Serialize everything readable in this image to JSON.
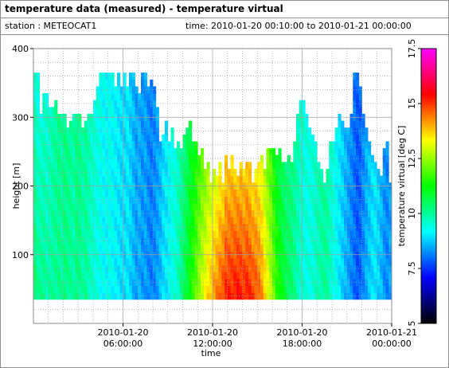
{
  "window": {
    "title": "temperature data (measured) - temperature virtual",
    "station": "station : METEOCAT1",
    "timespan": "time: 2010-01-20 00:10:00 to 2010-01-21 00:00:00"
  },
  "colors": {
    "frame": "#8c8c8c",
    "grid": "#a0a0a0",
    "colormap_stops": [
      "#000000",
      "#0000ff",
      "#00ffff",
      "#00ff00",
      "#ffff00",
      "#ff0000",
      "#ff00ff"
    ]
  },
  "chart_data": {
    "type": "heatmap",
    "xlabel": "time",
    "ylabel": "height [m]",
    "colorbar_label": "temperature virtual [deg C]",
    "x_ticks": [
      {
        "hour": 6,
        "line1": "2010-01-20",
        "line2": "06:00:00"
      },
      {
        "hour": 12,
        "line1": "2010-01-20",
        "line2": "12:00:00"
      },
      {
        "hour": 18,
        "line1": "2010-01-20",
        "line2": "18:00:00"
      },
      {
        "hour": 24,
        "line1": "2010-01-21",
        "line2": "00:00:00"
      }
    ],
    "xlim_hours": [
      0,
      24
    ],
    "ylim": [
      0,
      400
    ],
    "y_ticks": [
      "100",
      "200",
      "300",
      "400"
    ],
    "y_tick_values": [
      100,
      200,
      300,
      400
    ],
    "colorbar_range": [
      5,
      17.5
    ],
    "colorbar_ticks": [
      "5",
      "7.5",
      "10",
      "12.5",
      "15",
      "17.5"
    ],
    "colorbar_tick_values": [
      5,
      7.5,
      10,
      12.5,
      15,
      17.5
    ],
    "bottom_height": 35,
    "bin_height": 10,
    "column_width_hours": 0.2,
    "columns": [
      {
        "h": 0.0,
        "top": 365,
        "t": 9.8
      },
      {
        "h": 0.2,
        "top": 365,
        "t": 9.5
      },
      {
        "h": 0.4,
        "top": 305,
        "t": 9.6
      },
      {
        "h": 0.6,
        "top": 335,
        "t": 9.7
      },
      {
        "h": 0.8,
        "top": 335,
        "t": 9.6
      },
      {
        "h": 1.0,
        "top": 315,
        "t": 9.7
      },
      {
        "h": 1.2,
        "top": 315,
        "t": 9.9
      },
      {
        "h": 1.4,
        "top": 325,
        "t": 10.0
      },
      {
        "h": 1.6,
        "top": 305,
        "t": 10.1
      },
      {
        "h": 1.8,
        "top": 305,
        "t": 10.0
      },
      {
        "h": 2.0,
        "top": 305,
        "t": 10.2
      },
      {
        "h": 2.2,
        "top": 285,
        "t": 10.1
      },
      {
        "h": 2.4,
        "top": 295,
        "t": 10.0
      },
      {
        "h": 2.6,
        "top": 305,
        "t": 9.9
      },
      {
        "h": 2.8,
        "top": 305,
        "t": 10.2
      },
      {
        "h": 3.0,
        "top": 305,
        "t": 10.1
      },
      {
        "h": 3.2,
        "top": 285,
        "t": 9.9
      },
      {
        "h": 3.4,
        "top": 295,
        "t": 10.0
      },
      {
        "h": 3.6,
        "top": 305,
        "t": 9.8
      },
      {
        "h": 3.8,
        "top": 305,
        "t": 9.6
      },
      {
        "h": 4.0,
        "top": 325,
        "t": 9.5
      },
      {
        "h": 4.2,
        "top": 345,
        "t": 9.4
      },
      {
        "h": 4.4,
        "top": 365,
        "t": 9.3
      },
      {
        "h": 4.6,
        "top": 365,
        "t": 9.2
      },
      {
        "h": 4.8,
        "top": 365,
        "t": 9.2
      },
      {
        "h": 5.0,
        "top": 365,
        "t": 9.3
      },
      {
        "h": 5.2,
        "top": 365,
        "t": 9.2
      },
      {
        "h": 5.4,
        "top": 345,
        "t": 9.1
      },
      {
        "h": 5.6,
        "top": 365,
        "t": 9.0
      },
      {
        "h": 5.8,
        "top": 345,
        "t": 8.9
      },
      {
        "h": 6.0,
        "top": 365,
        "t": 8.9
      },
      {
        "h": 6.2,
        "top": 345,
        "t": 9.0
      },
      {
        "h": 6.4,
        "top": 365,
        "t": 8.8
      },
      {
        "h": 6.6,
        "top": 365,
        "t": 8.6
      },
      {
        "h": 6.8,
        "top": 345,
        "t": 8.4
      },
      {
        "h": 7.0,
        "top": 335,
        "t": 8.5
      },
      {
        "h": 7.2,
        "top": 365,
        "t": 8.3
      },
      {
        "h": 7.4,
        "top": 365,
        "t": 8.4
      },
      {
        "h": 7.6,
        "top": 345,
        "t": 8.2
      },
      {
        "h": 7.8,
        "top": 355,
        "t": 8.1
      },
      {
        "h": 8.0,
        "top": 345,
        "t": 8.2
      },
      {
        "h": 8.2,
        "top": 315,
        "t": 8.4
      },
      {
        "h": 8.4,
        "top": 265,
        "t": 8.6
      },
      {
        "h": 8.6,
        "top": 275,
        "t": 8.9
      },
      {
        "h": 8.8,
        "top": 295,
        "t": 9.0
      },
      {
        "h": 9.0,
        "top": 265,
        "t": 9.2
      },
      {
        "h": 9.2,
        "top": 285,
        "t": 9.4
      },
      {
        "h": 9.4,
        "top": 255,
        "t": 9.5
      },
      {
        "h": 9.6,
        "top": 265,
        "t": 9.7
      },
      {
        "h": 9.8,
        "top": 255,
        "t": 10.0
      },
      {
        "h": 10.0,
        "top": 275,
        "t": 10.3
      },
      {
        "h": 10.2,
        "top": 285,
        "t": 10.6
      },
      {
        "h": 10.4,
        "top": 295,
        "t": 10.9
      },
      {
        "h": 10.6,
        "top": 265,
        "t": 11.2
      },
      {
        "h": 10.8,
        "top": 265,
        "t": 11.5
      },
      {
        "h": 11.0,
        "top": 245,
        "t": 11.9
      },
      {
        "h": 11.2,
        "top": 255,
        "t": 12.2
      },
      {
        "h": 11.4,
        "top": 225,
        "t": 12.5
      },
      {
        "h": 11.6,
        "top": 235,
        "t": 12.8
      },
      {
        "h": 11.8,
        "top": 205,
        "t": 13.0
      },
      {
        "h": 12.0,
        "top": 225,
        "t": 13.2
      },
      {
        "h": 12.2,
        "top": 215,
        "t": 13.4
      },
      {
        "h": 12.4,
        "top": 235,
        "t": 13.6
      },
      {
        "h": 12.6,
        "top": 205,
        "t": 13.8
      },
      {
        "h": 12.8,
        "top": 245,
        "t": 14.0
      },
      {
        "h": 13.0,
        "top": 225,
        "t": 14.1
      },
      {
        "h": 13.2,
        "top": 245,
        "t": 14.0
      },
      {
        "h": 13.4,
        "top": 225,
        "t": 14.1
      },
      {
        "h": 13.6,
        "top": 215,
        "t": 14.2
      },
      {
        "h": 13.8,
        "top": 235,
        "t": 14.1
      },
      {
        "h": 14.0,
        "top": 225,
        "t": 14.0
      },
      {
        "h": 14.2,
        "top": 235,
        "t": 14.1
      },
      {
        "h": 14.4,
        "top": 235,
        "t": 14.0
      },
      {
        "h": 14.6,
        "top": 205,
        "t": 13.9
      },
      {
        "h": 14.8,
        "top": 225,
        "t": 13.8
      },
      {
        "h": 15.0,
        "top": 235,
        "t": 13.6
      },
      {
        "h": 15.2,
        "top": 245,
        "t": 13.3
      },
      {
        "h": 15.4,
        "top": 225,
        "t": 12.9
      },
      {
        "h": 15.6,
        "top": 255,
        "t": 12.4
      },
      {
        "h": 15.8,
        "top": 255,
        "t": 12.0
      },
      {
        "h": 16.0,
        "top": 255,
        "t": 11.5
      },
      {
        "h": 16.2,
        "top": 245,
        "t": 11.1
      },
      {
        "h": 16.4,
        "top": 255,
        "t": 10.8
      },
      {
        "h": 16.6,
        "top": 235,
        "t": 10.6
      },
      {
        "h": 16.8,
        "top": 235,
        "t": 10.4
      },
      {
        "h": 17.0,
        "top": 245,
        "t": 10.3
      },
      {
        "h": 17.2,
        "top": 235,
        "t": 10.2
      },
      {
        "h": 17.4,
        "top": 265,
        "t": 10.0
      },
      {
        "h": 17.6,
        "top": 305,
        "t": 9.8
      },
      {
        "h": 17.8,
        "top": 325,
        "t": 9.6
      },
      {
        "h": 18.0,
        "top": 325,
        "t": 9.5
      },
      {
        "h": 18.2,
        "top": 305,
        "t": 9.4
      },
      {
        "h": 18.4,
        "top": 285,
        "t": 9.4
      },
      {
        "h": 18.6,
        "top": 275,
        "t": 9.5
      },
      {
        "h": 18.8,
        "top": 265,
        "t": 9.6
      },
      {
        "h": 19.0,
        "top": 235,
        "t": 9.8
      },
      {
        "h": 19.2,
        "top": 225,
        "t": 9.9
      },
      {
        "h": 19.4,
        "top": 205,
        "t": 10.0
      },
      {
        "h": 19.6,
        "top": 225,
        "t": 9.9
      },
      {
        "h": 19.8,
        "top": 265,
        "t": 9.6
      },
      {
        "h": 20.0,
        "top": 265,
        "t": 9.4
      },
      {
        "h": 20.2,
        "top": 285,
        "t": 9.2
      },
      {
        "h": 20.4,
        "top": 305,
        "t": 9.0
      },
      {
        "h": 20.6,
        "top": 295,
        "t": 8.8
      },
      {
        "h": 20.8,
        "top": 285,
        "t": 8.6
      },
      {
        "h": 21.0,
        "top": 285,
        "t": 8.4
      },
      {
        "h": 21.2,
        "top": 305,
        "t": 8.2
      },
      {
        "h": 21.4,
        "top": 365,
        "t": 8.0
      },
      {
        "h": 21.6,
        "top": 365,
        "t": 7.8
      },
      {
        "h": 21.8,
        "top": 345,
        "t": 7.9
      },
      {
        "h": 22.0,
        "top": 305,
        "t": 8.2
      },
      {
        "h": 22.2,
        "top": 285,
        "t": 8.5
      },
      {
        "h": 22.4,
        "top": 265,
        "t": 8.7
      },
      {
        "h": 22.6,
        "top": 245,
        "t": 8.9
      },
      {
        "h": 22.8,
        "top": 235,
        "t": 9.0
      },
      {
        "h": 23.0,
        "top": 225,
        "t": 8.8
      },
      {
        "h": 23.2,
        "top": 215,
        "t": 8.6
      },
      {
        "h": 23.4,
        "top": 255,
        "t": 8.3
      },
      {
        "h": 23.6,
        "top": 265,
        "t": 8.2
      },
      {
        "h": 23.8,
        "top": 205,
        "t": 8.4
      }
    ]
  }
}
